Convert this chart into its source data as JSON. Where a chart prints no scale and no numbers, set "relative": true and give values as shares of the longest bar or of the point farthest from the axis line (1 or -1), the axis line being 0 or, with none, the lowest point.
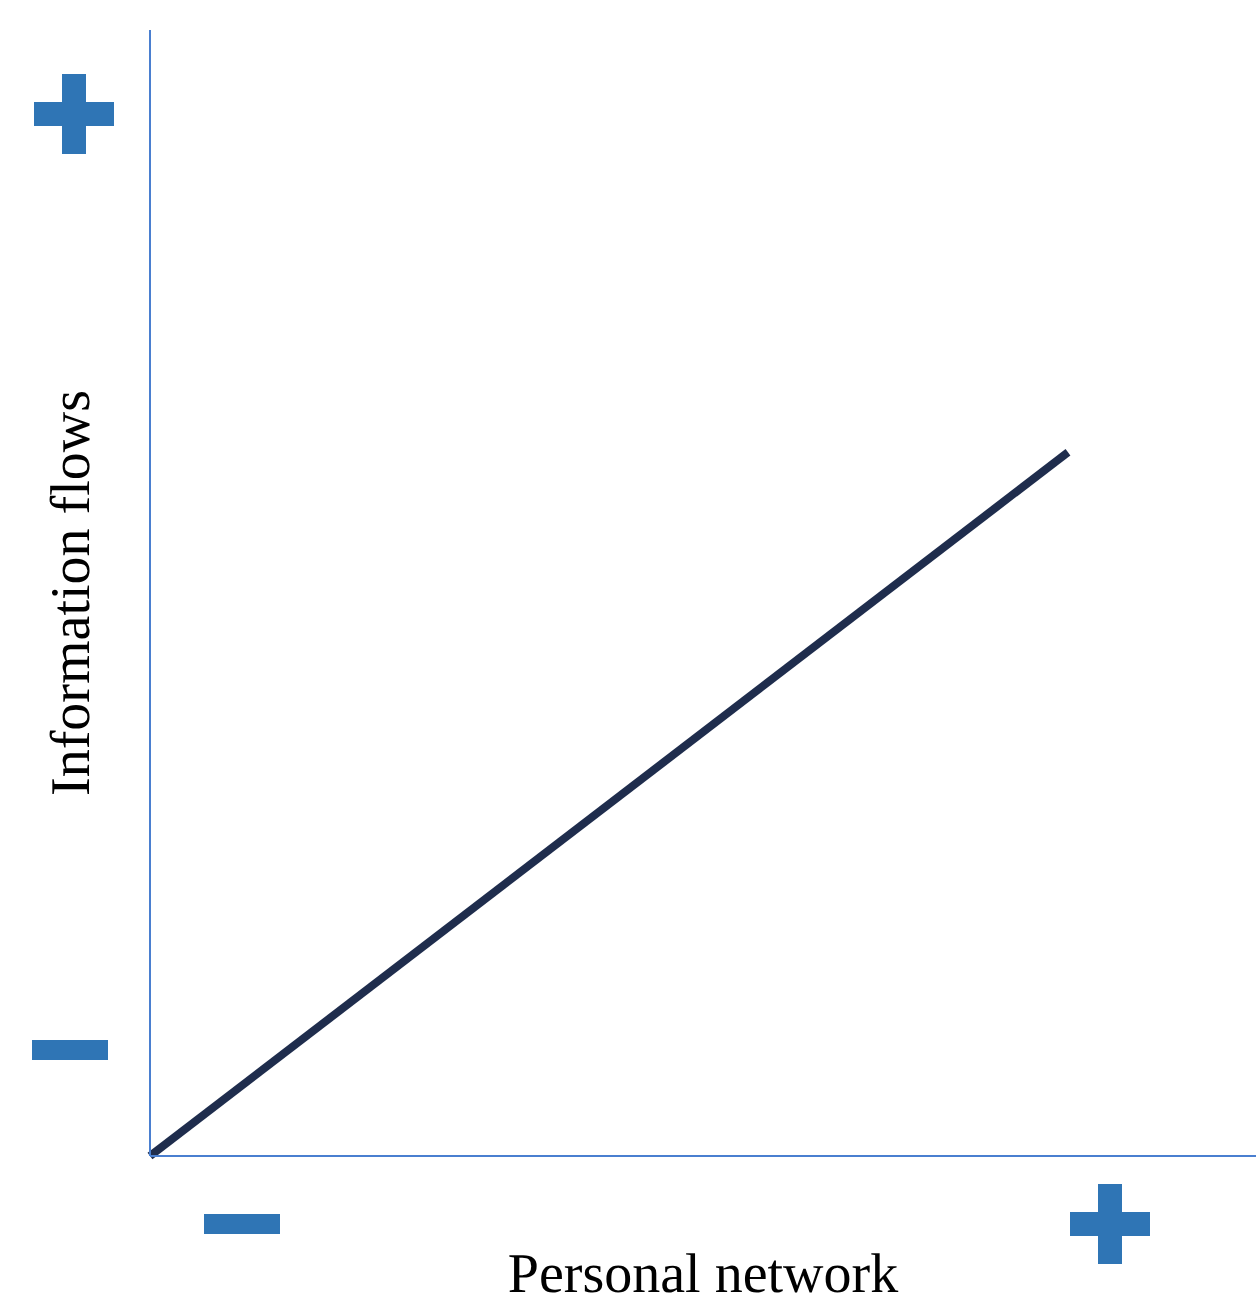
{
  "chart_data": {
    "type": "line",
    "relative": true,
    "xlabel": "Personal network",
    "ylabel": "Information flows",
    "categories": [
      null,
      null
    ],
    "series": [
      {
        "color": "#1f2d4d",
        "values": [
          0,
          1
        ]
      }
    ],
    "marker": "none",
    "line_style": "solid"
  }
}
